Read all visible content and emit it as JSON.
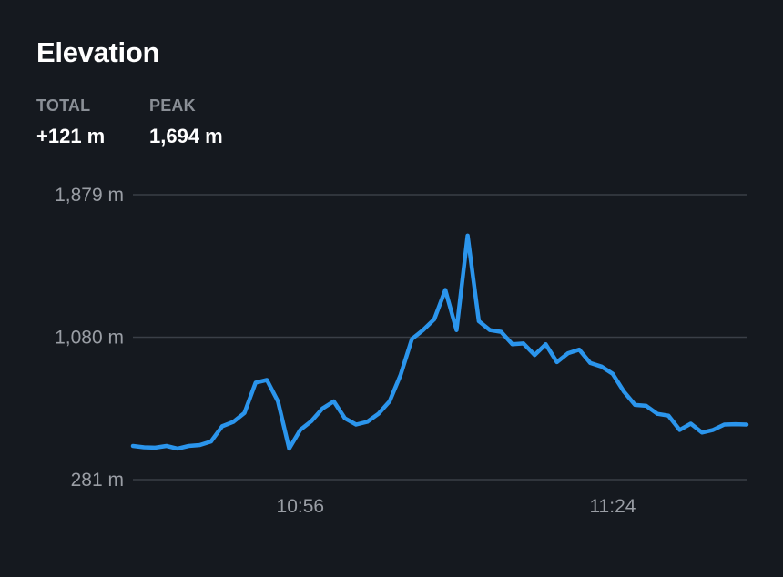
{
  "header": {
    "title": "Elevation"
  },
  "stats": {
    "total_label": "TOTAL",
    "total_value": "+121 m",
    "peak_label": "PEAK",
    "peak_value": "1,694 m"
  },
  "colors": {
    "background": "#15191f",
    "line": "#2b95ec",
    "grid": "#3a3f47",
    "tick_text": "#9a9ea5"
  },
  "chart_data": {
    "type": "line",
    "title": "",
    "xlabel": "",
    "ylabel": "",
    "ylim": [
      281,
      1879
    ],
    "yticks": [
      {
        "value": 281,
        "label": "281 m"
      },
      {
        "value": 1080,
        "label": "1,080 m"
      },
      {
        "value": 1879,
        "label": "1,879 m"
      }
    ],
    "xlim": [
      "10:41",
      "11:36"
    ],
    "xticks": [
      {
        "value": "10:56",
        "label": "10:56"
      },
      {
        "value": "11:24",
        "label": "11:24"
      }
    ],
    "grid": true,
    "series": [
      {
        "x": [
          "10:41",
          "10:42",
          "10:43",
          "10:44",
          "10:45",
          "10:46",
          "10:47",
          "10:48",
          "10:49",
          "10:50",
          "10:51",
          "10:52",
          "10:53",
          "10:54",
          "10:55",
          "10:56",
          "10:57",
          "10:58",
          "10:59",
          "11:00",
          "11:01",
          "11:02",
          "11:03",
          "11:04",
          "11:05",
          "11:06",
          "11:07",
          "11:08",
          "11:09",
          "11:10",
          "11:11",
          "11:12",
          "11:13",
          "11:14",
          "11:15",
          "11:16",
          "11:17",
          "11:18",
          "11:19",
          "11:20",
          "11:21",
          "11:22",
          "11:23",
          "11:24",
          "11:25",
          "11:26",
          "11:27",
          "11:28",
          "11:29",
          "11:30",
          "11:31",
          "11:32",
          "11:33",
          "11:34",
          "11:35",
          "11:36"
        ],
        "y": [
          470,
          462,
          460,
          470,
          455,
          470,
          475,
          495,
          580,
          605,
          655,
          825,
          840,
          720,
          455,
          560,
          610,
          680,
          720,
          625,
          590,
          605,
          650,
          720,
          870,
          1070,
          1120,
          1180,
          1345,
          1120,
          1650,
          1170,
          1120,
          1110,
          1040,
          1045,
          980,
          1040,
          940,
          990,
          1010,
          935,
          915,
          875,
          775,
          700,
          695,
          650,
          640,
          560,
          595,
          545,
          560,
          590,
          592,
          590
        ]
      }
    ]
  }
}
